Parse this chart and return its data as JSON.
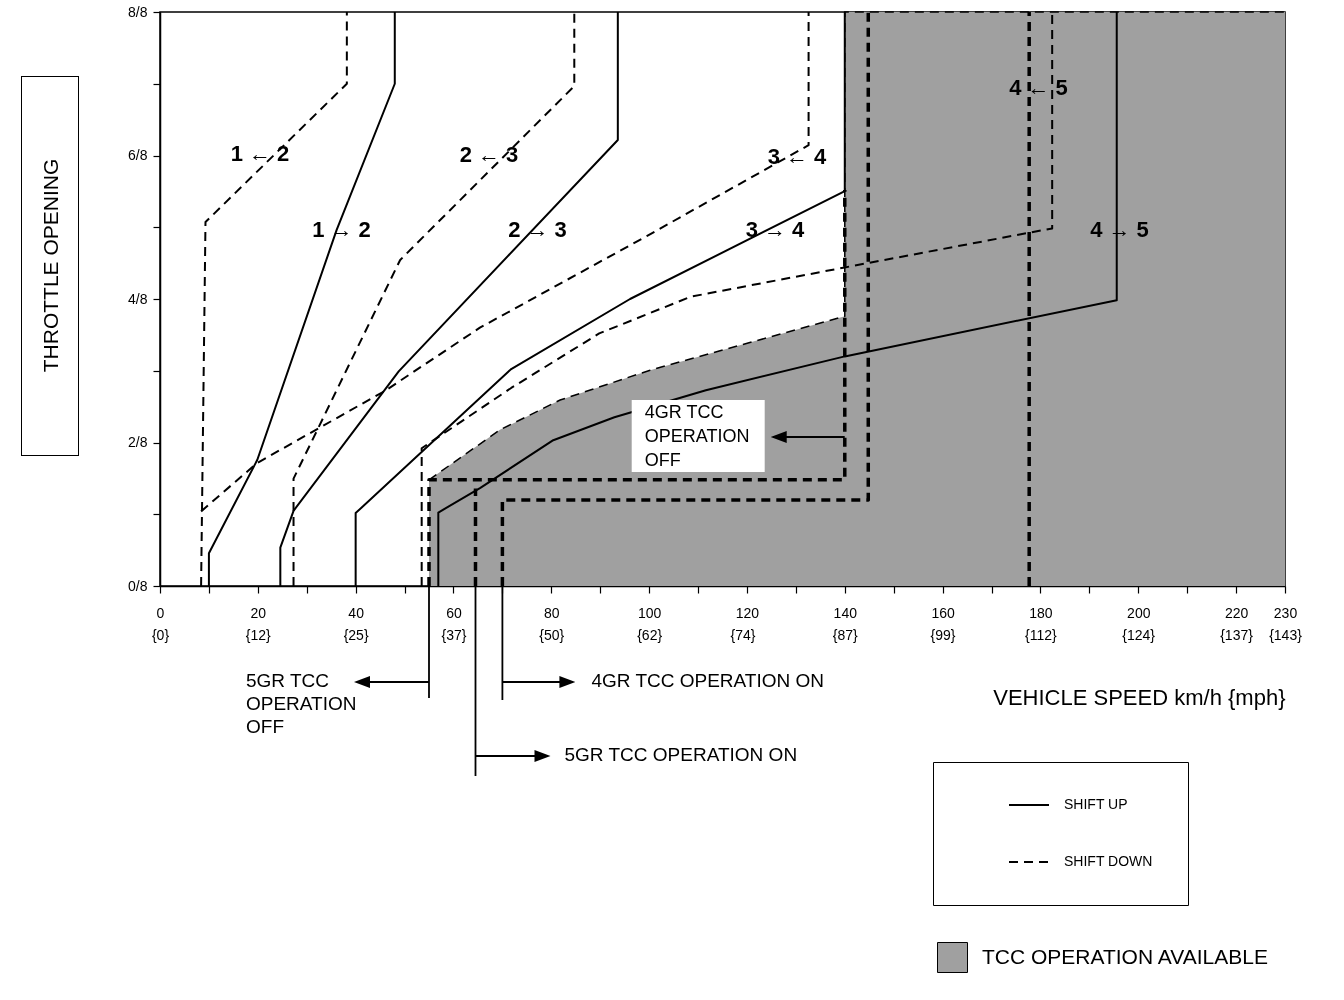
{
  "chart_data": {
    "type": "line",
    "xlabel": "VEHICLE SPEED km/h {mph}",
    "ylabel": "THROTTLE OPENING",
    "xlim": [
      0,
      230
    ],
    "ylim": [
      0,
      1
    ],
    "xticks": [
      0,
      {
        "value": 10,
        "label": null
      },
      20,
      {
        "value": 30,
        "label": null
      },
      40,
      {
        "value": 50,
        "label": null
      },
      60,
      {
        "value": 70,
        "label": null
      },
      80,
      {
        "value": 90,
        "label": null
      },
      100,
      {
        "value": 110,
        "label": null
      },
      120,
      {
        "value": 130,
        "label": null
      },
      140,
      {
        "value": 150,
        "label": null
      },
      160,
      {
        "value": 170,
        "label": null
      },
      180,
      {
        "value": 190,
        "label": null
      },
      200,
      {
        "value": 210,
        "label": null
      },
      220,
      230
    ],
    "x2lim": [
      0,
      142.92
    ],
    "x2ticks": [
      {
        "value": 0,
        "label": "{0}"
      },
      {
        "value": 12.43,
        "label": "{12}"
      },
      {
        "value": 24.85,
        "label": "{25}"
      },
      {
        "value": 37.28,
        "label": "{37}"
      },
      {
        "value": 49.71,
        "label": "{50}"
      },
      {
        "value": 62.14,
        "label": "{62}"
      },
      {
        "value": 74,
        "label": "{74}"
      },
      {
        "value": 86.99,
        "label": "{87}"
      },
      {
        "value": 99.42,
        "label": "{99}"
      },
      {
        "value": 111.85,
        "label": "{112}"
      },
      {
        "value": 124.27,
        "label": "{124}"
      },
      {
        "value": 136.7,
        "label": "{137}"
      },
      {
        "value": 142.92,
        "label": "{143}"
      }
    ],
    "yticks": [
      {
        "value": 0,
        "label": "0/8"
      },
      {
        "value": 0.125,
        "label": null
      },
      {
        "value": 0.25,
        "label": "2/8"
      },
      {
        "value": 0.375,
        "label": null
      },
      {
        "value": 0.5,
        "label": "4/8"
      },
      {
        "value": 0.625,
        "label": null
      },
      {
        "value": 0.75,
        "label": "6/8"
      },
      {
        "value": 0.875,
        "label": null
      },
      {
        "value": 1,
        "label": "8/8"
      }
    ],
    "legend": "bottom right",
    "series": [
      {
        "name": "TCC OPERATION AVAILABLE",
        "type": "area",
        "color": "#a0a0a0",
        "line_style": "dashed",
        "x": [
          55,
          69.5,
          81.8,
          100.2,
          140,
          140,
          230
        ],
        "values": [
          0.185,
          0.272,
          0.324,
          0.376,
          0.47,
          1,
          1
        ]
      },
      {
        "name": "SHIFT UP",
        "color": "#000000",
        "line_style": "solid",
        "x": [
          10,
          10,
          19.9,
          36.1,
          48,
          48,
          null,
          24.6,
          24.6,
          27.3,
          48.8,
          93.6,
          93.6,
          null,
          40,
          40,
          71.8,
          96.1,
          140,
          140,
          null,
          56.9,
          56.9,
          65.5,
          80.4,
          92.9,
          111.6,
          140,
          195.6,
          195.6
        ],
        "values": [
          0,
          0.057,
          0.22,
          0.62,
          0.875,
          1,
          null,
          0,
          0.067,
          0.131,
          0.374,
          0.777,
          1,
          null,
          0,
          0.127,
          0.378,
          0.5,
          0.688,
          1,
          null,
          0,
          0.128,
          0.171,
          0.254,
          0.294,
          0.341,
          0.4,
          0.498,
          1
        ]
      },
      {
        "name": "SHIFT DOWN",
        "color": "#000000",
        "line_style": "dashed",
        "x": [
          8.4,
          9.3,
          38.2,
          38.2,
          null,
          27.3,
          27.3,
          49.1,
          84.7,
          84.7,
          null,
          8.4,
          19.8,
          46,
          65.4,
          99.6,
          132.6,
          132.6,
          null,
          53.5,
          53.5,
          71.8,
          89.8,
          108.5,
          140,
          182.4,
          182.4
        ],
        "values": [
          0,
          0.634,
          0.875,
          1,
          null,
          0,
          0.187,
          0.568,
          0.871,
          1,
          null,
          0.13,
          0.214,
          0.34,
          0.45,
          0.61,
          0.768,
          1,
          null,
          0,
          0.24,
          0.345,
          0.44,
          0.504,
          0.555,
          0.623,
          1
        ]
      },
      {
        "color": "#000000",
        "line_style": "dashed",
        "x": [
          55,
          55,
          140,
          140,
          null,
          70,
          70,
          144.8,
          144.8,
          null,
          64.5,
          64.5,
          null,
          177.7,
          177.7
        ],
        "values": [
          0,
          0.185,
          0.185,
          0.69,
          null,
          0,
          0.15,
          0.15,
          1,
          null,
          0,
          0.17,
          null,
          0,
          1
        ]
      }
    ],
    "annotations": [
      "1 ← 2",
      "1 → 2",
      "2 ← 3",
      "2 → 3",
      "3 ← 4",
      "3 → 4",
      "4 ← 5",
      "4 → 5",
      "4GR TCC\nOPERATION\nOFF",
      "5GR TCC\nOPERATION\nOFF",
      "4GR TCC OPERATION ON",
      "5GR TCC OPERATION ON"
    ]
  }
}
